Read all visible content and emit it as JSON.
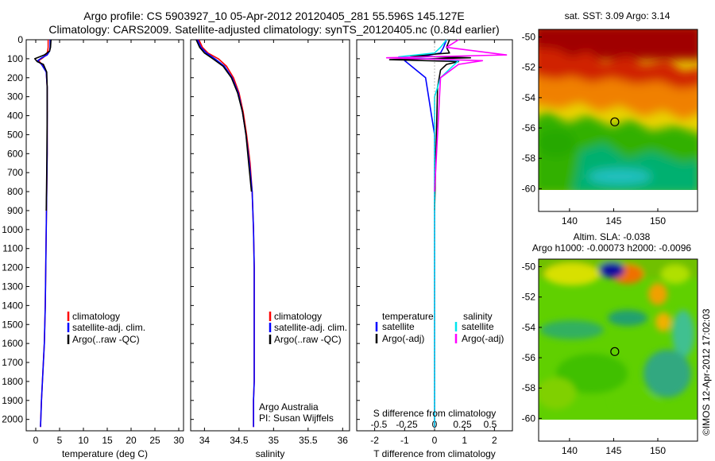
{
  "header": {
    "title_line1": "Argo profile: CS 5903927_10 05-Apr-2012 20120405_281 55.596S 145.127E",
    "title_line2": "Climatology: CARS2009. Satellite-adjusted climatology: synTS_20120405.nc (0.84d earlier)"
  },
  "colors": {
    "climatology": "#ff0000",
    "satellite": "#0000ff",
    "argo": "#000000",
    "sal_satellite": "#00e5ee",
    "sal_argo": "#ff00ff"
  },
  "chart_data": [
    {
      "type": "line",
      "id": "temperature",
      "xlabel": "temperature (deg C)",
      "ylabel": "",
      "xlim": [
        -2,
        31
      ],
      "ylim": [
        2060,
        0
      ],
      "xticks": [
        0,
        5,
        10,
        15,
        20,
        25,
        30
      ],
      "yticks": [
        0,
        100,
        200,
        300,
        400,
        500,
        600,
        700,
        800,
        900,
        1000,
        1100,
        1200,
        1300,
        1400,
        1500,
        1600,
        1700,
        1800,
        1900,
        2000
      ],
      "legend": [
        "climatology",
        "satellite-adj. clim.",
        "Argo(..raw -QC)"
      ],
      "series": [
        {
          "name": "climatology",
          "x": [
            2.6,
            2.6,
            2.5,
            2.2,
            1.5,
            0.6,
            1.3,
            2.2,
            2.4,
            2.4,
            2.4,
            2.3,
            2.2,
            2.1,
            2.0,
            1.9,
            1.8,
            1.6,
            1.4,
            1.2,
            1.0
          ],
          "y": [
            0,
            40,
            60,
            80,
            95,
            110,
            130,
            170,
            250,
            400,
            600,
            800,
            1000,
            1200,
            1400,
            1500,
            1600,
            1700,
            1800,
            1900,
            2040
          ]
        },
        {
          "name": "satellite-adj. clim.",
          "x": [
            3.0,
            3.0,
            2.9,
            2.4,
            1.3,
            0.4,
            1.2,
            2.2,
            2.4,
            2.4,
            2.4,
            2.3,
            2.2,
            2.1,
            2.0,
            1.9,
            1.8,
            1.6,
            1.4,
            1.2,
            1.0
          ],
          "y": [
            0,
            40,
            60,
            80,
            95,
            110,
            130,
            170,
            250,
            400,
            600,
            800,
            1000,
            1200,
            1400,
            1500,
            1600,
            1700,
            1800,
            1900,
            2040
          ]
        },
        {
          "name": "Argo(..raw -QC)",
          "x": [
            3.2,
            3.1,
            2.9,
            1.8,
            -0.2,
            0.3,
            1.6,
            2.3,
            2.4,
            2.4,
            2.3,
            2.2
          ],
          "y": [
            0,
            40,
            60,
            80,
            100,
            115,
            130,
            170,
            250,
            400,
            700,
            900
          ]
        }
      ]
    },
    {
      "type": "line",
      "id": "salinity",
      "xlabel": "salinity",
      "ylabel": "",
      "xlim": [
        33.8,
        36.1
      ],
      "ylim": [
        2060,
        0
      ],
      "xticks": [
        34,
        34.5,
        35,
        35.5,
        36
      ],
      "legend": [
        "climatology",
        "satellite-adj. clim.",
        "Argo(..raw -QC)"
      ],
      "annotations": [
        "Argo Australia",
        "PI: Susan Wijffels"
      ],
      "series": [
        {
          "name": "climatology",
          "x": [
            33.92,
            33.97,
            34.05,
            34.2,
            34.32,
            34.42,
            34.5,
            34.56,
            34.61,
            34.66,
            34.69,
            34.71,
            34.72,
            34.72,
            34.72,
            34.72,
            34.71,
            34.71
          ],
          "y": [
            0,
            40,
            70,
            100,
            140,
            200,
            280,
            380,
            500,
            650,
            800,
            1000,
            1200,
            1400,
            1600,
            1800,
            1900,
            2040
          ]
        },
        {
          "name": "satellite-adj. clim.",
          "x": [
            33.9,
            33.95,
            34.03,
            34.15,
            34.29,
            34.4,
            34.49,
            34.55,
            34.6,
            34.65,
            34.69,
            34.71,
            34.72,
            34.72,
            34.72,
            34.72,
            34.71,
            34.71
          ],
          "y": [
            0,
            40,
            70,
            100,
            140,
            200,
            280,
            380,
            500,
            650,
            800,
            1000,
            1200,
            1400,
            1600,
            1800,
            1900,
            2040
          ]
        },
        {
          "name": "Argo(..raw -QC)",
          "x": [
            33.88,
            33.93,
            34.0,
            34.12,
            34.27,
            34.39,
            34.48,
            34.55,
            34.6,
            34.64,
            34.68
          ],
          "y": [
            0,
            40,
            70,
            100,
            140,
            200,
            280,
            380,
            500,
            650,
            800
          ]
        }
      ]
    },
    {
      "type": "line",
      "id": "differences",
      "xlabel": "T difference from climatology",
      "xlabel_top": "S difference from climatology",
      "xlim": [
        -2.6,
        2.6
      ],
      "ylim": [
        2060,
        0
      ],
      "xticks": [
        -2,
        -1,
        0,
        1,
        2
      ],
      "xticks_top": [
        "-0.5",
        "-0.25",
        "0",
        "0.25",
        "0.5"
      ],
      "legend_left_title": "temperature",
      "legend_right_title": "salinity",
      "legend": [
        "satellite",
        "Argo(-adj)",
        "satellite",
        "Argo(-adj)"
      ],
      "series": [
        {
          "name": "temperature satellite",
          "x": [
            0.4,
            0.3,
            0.2,
            -0.5,
            -1.0,
            -0.3,
            -0.2,
            -0.1,
            0,
            0,
            0,
            0
          ],
          "y": [
            0,
            40,
            70,
            90,
            110,
            200,
            300,
            400,
            500,
            1000,
            1500,
            2040
          ]
        },
        {
          "name": "temperature Argo(-adj)",
          "x": [
            0.5,
            0.4,
            0.5,
            -0.8,
            1.2,
            -1.5,
            0.8,
            0.4,
            0.2,
            0.1,
            0
          ],
          "y": [
            0,
            40,
            70,
            85,
            95,
            105,
            115,
            130,
            160,
            250,
            900
          ]
        },
        {
          "name": "salinity satellite",
          "x": [
            0.1,
            0.05,
            0,
            -0.3,
            0.2,
            0.15,
            0.05,
            0,
            0,
            0
          ],
          "y": [
            0,
            40,
            70,
            90,
            110,
            140,
            200,
            300,
            1000,
            2040
          ]
        },
        {
          "name": "salinity Argo(-adj)",
          "x": [
            0.2,
            0.1,
            0.6,
            -0.4,
            0.4,
            0.2,
            0.05,
            0
          ],
          "y": [
            0,
            40,
            80,
            95,
            110,
            130,
            200,
            800
          ]
        }
      ]
    },
    {
      "type": "heatmap",
      "id": "sst_map",
      "title": "sat. SST: 3.09 Argo: 3.14",
      "xlim": [
        136.5,
        154.5
      ],
      "ylim": [
        -61.5,
        -49.5
      ],
      "xticks": [
        140,
        145,
        150
      ],
      "yticks": [
        -50,
        -52,
        -54,
        -56,
        -58,
        -60
      ],
      "marker": {
        "lon": 145.127,
        "lat": -55.596
      }
    },
    {
      "type": "heatmap",
      "id": "sla_map",
      "title": "Altim. SLA: -0.038",
      "subtitle": "Argo h1000: -0.00073 h2000: -0.0096",
      "xlim": [
        136.5,
        154.5
      ],
      "ylim": [
        -61.5,
        -49.5
      ],
      "xticks": [
        140,
        145,
        150
      ],
      "yticks": [
        -50,
        -52,
        -54,
        -56,
        -58,
        -60
      ],
      "marker": {
        "lon": 145.127,
        "lat": -55.596
      }
    }
  ],
  "footer": {
    "stamp": "©IMOS 12-Apr-2012 17:02:03"
  }
}
